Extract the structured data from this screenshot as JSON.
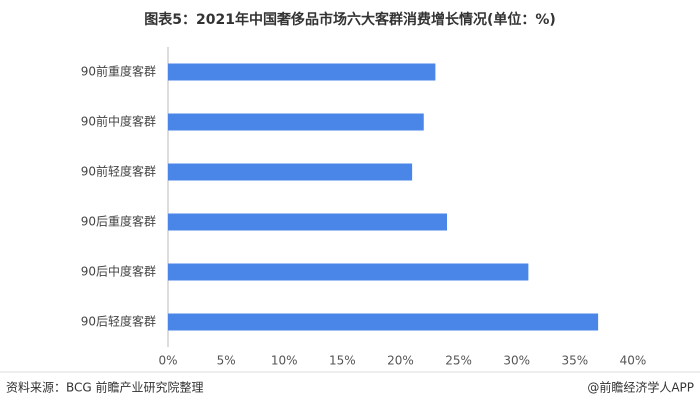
{
  "chart_data": {
    "type": "hbar",
    "title": "图表5：2021年中国奢侈品市场六大客群消费增长情况(单位：%)",
    "categories": [
      "90前重度客群",
      "90前中度客群",
      "90前轻度客群",
      "90后重度客群",
      "90后中度客群",
      "90后轻度客群"
    ],
    "values": [
      23,
      22,
      21,
      24,
      31,
      37
    ],
    "color": "#4a86e8",
    "xlim": [
      0,
      40
    ],
    "xticks": [
      {
        "value": 0,
        "label": "0%"
      },
      {
        "value": 5,
        "label": "5%"
      },
      {
        "value": 10,
        "label": "10%"
      },
      {
        "value": 15,
        "label": "15%"
      },
      {
        "value": 20,
        "label": "20%"
      },
      {
        "value": 25,
        "label": "25%"
      },
      {
        "value": 30,
        "label": "30%"
      },
      {
        "value": 35,
        "label": "35%"
      },
      {
        "value": 40,
        "label": "40%"
      }
    ],
    "source": "资料来源：BCG 前瞻产业研究院整理",
    "credit": "@前瞻经济学人APP"
  }
}
